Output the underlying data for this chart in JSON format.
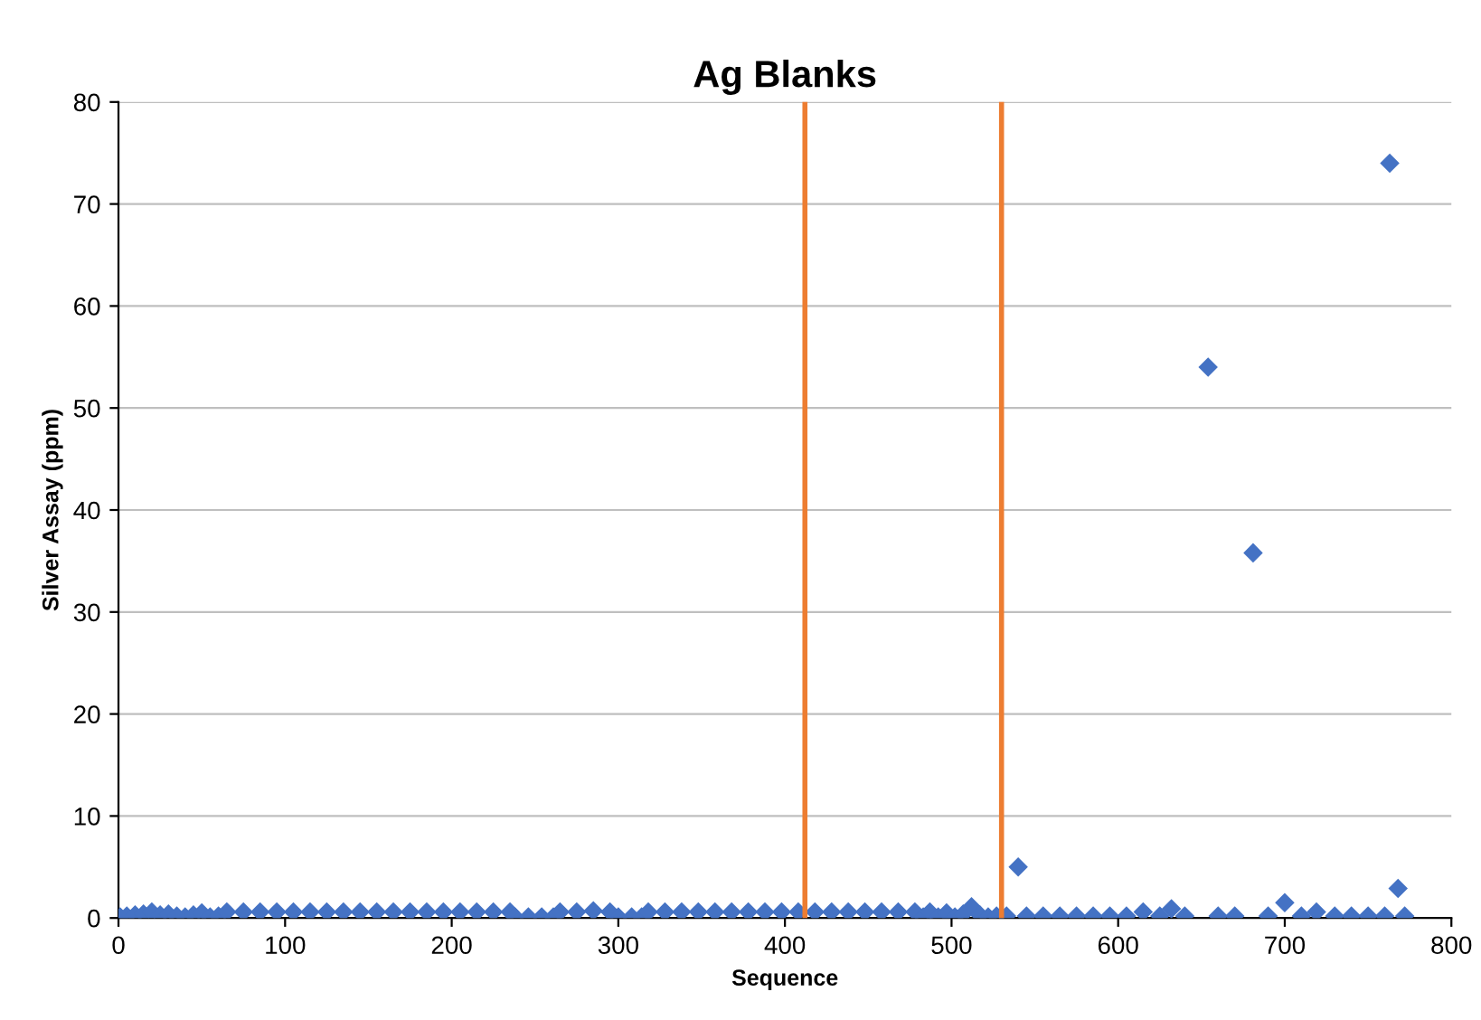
{
  "chart_data": {
    "type": "scatter",
    "title": "Ag Blanks",
    "xlabel": "Sequence",
    "ylabel": "Silver Assay (ppm)",
    "x": [
      1,
      5,
      10,
      15,
      20,
      25,
      30,
      35,
      40,
      45,
      50,
      55,
      60,
      65,
      75,
      85,
      95,
      105,
      115,
      125,
      135,
      145,
      155,
      165,
      175,
      185,
      195,
      205,
      215,
      225,
      235,
      238,
      246,
      254,
      261,
      265,
      275,
      285,
      295,
      300,
      308,
      314,
      318,
      328,
      338,
      348,
      358,
      368,
      378,
      388,
      398,
      408,
      418,
      428,
      438,
      448,
      458,
      468,
      478,
      483,
      487,
      492,
      497,
      502,
      507,
      512,
      517,
      522,
      527,
      533,
      540,
      545,
      555,
      565,
      575,
      585,
      595,
      605,
      615,
      625,
      632,
      640,
      654,
      660,
      670,
      681,
      690,
      700,
      710,
      719,
      730,
      740,
      750,
      760,
      763,
      768,
      772
    ],
    "series": [
      {
        "color": "#4472c4",
        "values": [
          0.1,
          0.2,
          0.3,
          0.4,
          0.6,
          0.3,
          0.4,
          0.2,
          0.1,
          0.3,
          0.5,
          0.1,
          0.2,
          0.6,
          0.6,
          0.6,
          0.6,
          0.6,
          0.6,
          0.6,
          0.6,
          0.6,
          0.6,
          0.6,
          0.6,
          0.6,
          0.6,
          0.6,
          0.6,
          0.6,
          0.6,
          0.1,
          0.1,
          0.1,
          0.1,
          0.6,
          0.6,
          0.7,
          0.6,
          0.1,
          0.1,
          0.1,
          0.6,
          0.6,
          0.6,
          0.6,
          0.6,
          0.6,
          0.6,
          0.6,
          0.6,
          0.6,
          0.6,
          0.6,
          0.6,
          0.6,
          0.6,
          0.6,
          0.6,
          0.1,
          0.6,
          0.1,
          0.5,
          0.1,
          0.4,
          1.1,
          0.3,
          0.1,
          0.2,
          0.2,
          5.0,
          0.2,
          0.2,
          0.2,
          0.2,
          0.2,
          0.2,
          0.2,
          0.6,
          0.2,
          0.9,
          0.2,
          54,
          0.2,
          0.2,
          35.8,
          0.2,
          1.5,
          0.2,
          0.6,
          0.2,
          0.2,
          0.2,
          0.2,
          74,
          2.9,
          0.2
        ]
      }
    ],
    "marker": "diamond",
    "xlim": [
      0,
      800
    ],
    "xticks": [
      0,
      100,
      200,
      300,
      400,
      500,
      600,
      700,
      800
    ],
    "ylim": [
      0,
      80
    ],
    "yticks": [
      0,
      10,
      20,
      30,
      40,
      50,
      60,
      70,
      80
    ],
    "grid": "y",
    "legend": false,
    "ref_lines": [
      {
        "axis": "x",
        "value": 412,
        "color": "#ed7d31"
      },
      {
        "axis": "x",
        "value": 530,
        "color": "#ed7d31"
      }
    ]
  }
}
